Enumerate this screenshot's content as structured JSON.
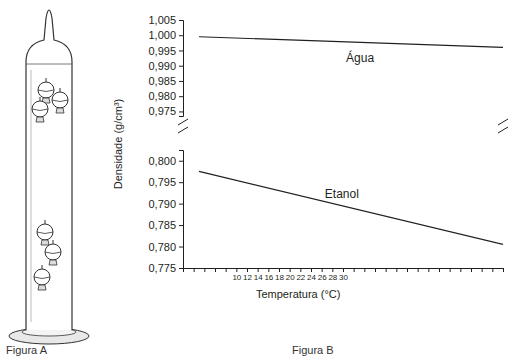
{
  "figure_labels": [
    "Figura A",
    "Figura B"
  ],
  "chart_data": [
    {
      "type": "line",
      "ylabel": "Densidade (g/cm³)",
      "x": [
        3,
        60
      ],
      "xlim": [
        0,
        60
      ],
      "ylim": [
        0.9735,
        1.005
      ],
      "yticks": [
        {
          "value": 0.975,
          "label": "0,975"
        },
        {
          "value": 0.98,
          "label": "0,980"
        },
        {
          "value": 0.985,
          "label": "0,985"
        },
        {
          "value": 0.99,
          "label": "0,990"
        },
        {
          "value": 0.995,
          "label": "0,995"
        },
        {
          "value": 1.0,
          "label": "1,000"
        },
        {
          "value": 1.005,
          "label": "1,005"
        }
      ],
      "series": [
        {
          "name": "Água",
          "color": "#231f20",
          "values": [
            0.9995,
            0.996
          ]
        }
      ]
    },
    {
      "type": "line",
      "xlabel": "Temperatura (°C)",
      "x": [
        3,
        60
      ],
      "xlim": [
        0,
        60
      ],
      "ylim": [
        0.775,
        0.8025
      ],
      "xticks": [
        {
          "value": 0,
          "label": null
        },
        {
          "value": 2,
          "label": null
        },
        {
          "value": 4,
          "label": null
        },
        {
          "value": 6,
          "label": null
        },
        {
          "value": 8,
          "label": null
        },
        10,
        12,
        14,
        16,
        18,
        20,
        22,
        24,
        26,
        28,
        30,
        {
          "value": 32,
          "label": null
        },
        {
          "value": 34,
          "label": null
        },
        {
          "value": 36,
          "label": null
        },
        {
          "value": 38,
          "label": null
        },
        {
          "value": 40,
          "label": null
        },
        {
          "value": 42,
          "label": null
        },
        {
          "value": 44,
          "label": null
        },
        {
          "value": 46,
          "label": null
        },
        {
          "value": 48,
          "label": null
        },
        {
          "value": 50,
          "label": null
        },
        {
          "value": 52,
          "label": null
        },
        {
          "value": 54,
          "label": null
        },
        {
          "value": 56,
          "label": null
        },
        {
          "value": 58,
          "label": null
        },
        {
          "value": 60,
          "label": null
        }
      ],
      "yticks": [
        {
          "value": 0.775,
          "label": "0,775"
        },
        {
          "value": 0.78,
          "label": "0,780"
        },
        {
          "value": 0.785,
          "label": "0,785"
        },
        {
          "value": 0.79,
          "label": "0,790"
        },
        {
          "value": 0.795,
          "label": "0,795"
        },
        {
          "value": 0.8,
          "label": "0,800"
        }
      ],
      "series": [
        {
          "name": "Etanol",
          "color": "#231f20",
          "values": [
            0.7975,
            0.7805
          ]
        }
      ]
    }
  ]
}
